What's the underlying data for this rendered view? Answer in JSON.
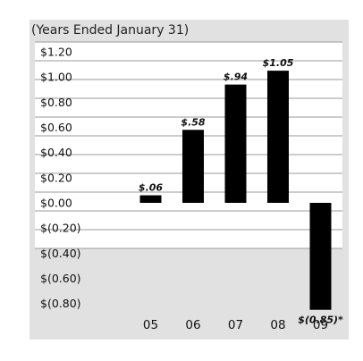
{
  "chart_data": {
    "type": "bar",
    "title": "(Years Ended January 31)",
    "xlabel": "",
    "ylabel": "",
    "categories": [
      "05",
      "06",
      "07",
      "08",
      "09"
    ],
    "values": [
      0.06,
      0.58,
      0.94,
      1.05,
      -0.85
    ],
    "data_labels": [
      "$.06",
      "$.58",
      "$.94",
      "$1.05",
      "$(0.85)*"
    ],
    "yticks": [
      1.2,
      1.0,
      0.8,
      0.6,
      0.4,
      0.2,
      0.0,
      -0.2,
      -0.4,
      -0.6,
      -0.8
    ],
    "ytick_labels": [
      "$1.20",
      "$1.00",
      "$0.80",
      "$0.60",
      "$0.40",
      "$0.20",
      "$0.00",
      "$(0.20)",
      "$(0.40)",
      "$(0.60)",
      "$(0.80)"
    ],
    "ylim": [
      -0.9,
      1.3
    ],
    "grid": true,
    "colors": {
      "bar": "#000000",
      "background": "#e1e1e1",
      "row_fill": "#ffffff",
      "grid_line": "#9a9a9a"
    }
  }
}
